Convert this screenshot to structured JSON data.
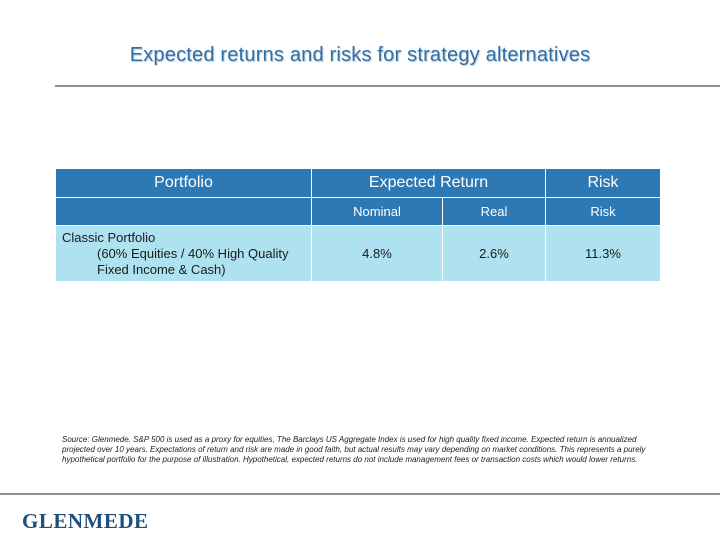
{
  "slide": {
    "title": "Expected returns and risks for strategy alternatives"
  },
  "table": {
    "headers": {
      "portfolio": "Portfolio",
      "expected_return": "Expected Return",
      "risk": "Risk"
    },
    "subheaders": {
      "nominal": "Nominal",
      "real": "Real",
      "risk": "Risk"
    },
    "rows": [
      {
        "portfolio_name": "Classic Portfolio",
        "portfolio_detail": "(60% Equities / 40% High Quality Fixed Income & Cash)",
        "nominal": "4.8%",
        "real": "2.6%",
        "risk": "11.3%"
      }
    ]
  },
  "footnote": "Source: Glenmede. S&P 500 is used as a proxy for equities, The Barclays US Aggregate Index is used for high quality fixed income. Expected return is annualized projected over 10 years. Expectations of return and risk are made in good faith, but actual results may vary depending on market conditions. This represents a purely hypothetical portfolio for the purpose of illustration. Hypothetical, expected returns do not include management fees or transaction costs which would lower returns.",
  "brand": {
    "logo_text": "GLENMEDE"
  },
  "colors": {
    "title": "#2f6fa8",
    "header_fill": "#2d79b5",
    "data_fill": "#aee2f0",
    "rule": "#8f8f8f",
    "logo": "#1d4f7a"
  }
}
